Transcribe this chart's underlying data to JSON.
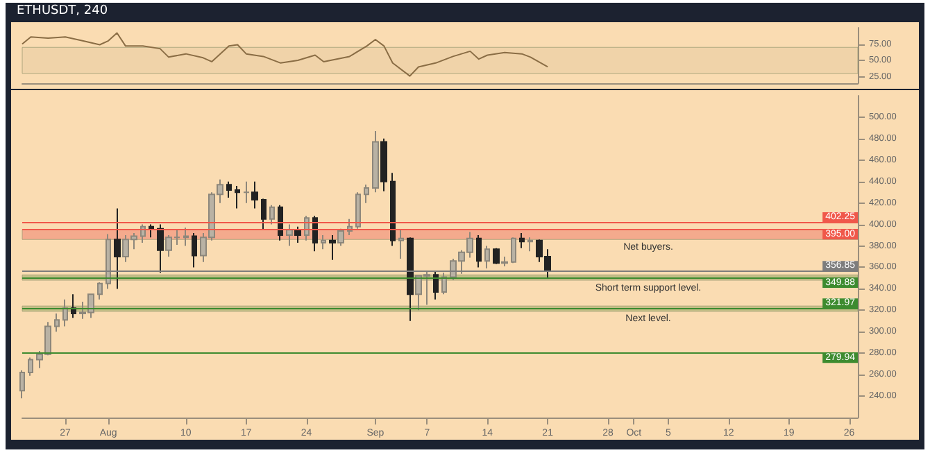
{
  "chart_data": [
    {
      "type": "line",
      "title": "ETHUSDT, 240",
      "x": [
        "--07-22",
        "--07-23",
        "--07-25",
        "--07-27",
        "--07-29",
        "--07-31",
        "--08-01",
        "--08-02",
        "--08-03",
        "--08-05",
        "--08-07",
        "--08-08",
        "--08-10",
        "--08-12",
        "--08-13",
        "--08-15",
        "--08-16",
        "--08-17",
        "--08-19",
        "--08-21",
        "--08-23",
        "--08-25",
        "--08-26",
        "--08-29",
        "--08-31",
        "--09-01",
        "--09-02",
        "--09-03",
        "--09-05",
        "--09-06",
        "--09-08",
        "--09-10",
        "--09-12",
        "--09-13",
        "--09-14",
        "--09-16",
        "--09-18",
        "--09-19",
        "--09-21"
      ],
      "series": [
        {
          "color": "#8a6d45",
          "values": [
            75,
            86,
            84,
            86,
            80,
            74,
            80,
            92,
            72,
            72,
            68,
            55,
            60,
            54,
            48,
            72,
            74,
            60,
            56,
            46,
            50,
            58,
            48,
            56,
            72,
            82,
            72,
            46,
            26,
            40,
            46,
            56,
            64,
            52,
            58,
            62,
            60,
            55,
            40
          ]
        }
      ],
      "xlim": [
        "--07-22",
        "--10-27"
      ],
      "ylim": [
        15,
        100
      ],
      "yticks": [
        {
          "value": 25,
          "label": "25.00"
        },
        {
          "value": 50,
          "label": "50.00"
        },
        {
          "value": 75,
          "label": "75.00"
        }
      ],
      "bands": [
        {
          "axis": "y",
          "from": 30,
          "to": 70,
          "color": "#ecd0a6"
        }
      ],
      "tick_labels": "y",
      "marker": "none",
      "grid": false
    },
    {
      "type": "candlestick",
      "x": [
        "--07-22",
        "--07-23",
        "--07-24",
        "--07-25",
        "--07-26",
        "--07-27",
        "--07-28",
        "--07-29",
        "--07-30",
        "--07-31",
        "--08-01",
        "--08-02",
        "--08-03",
        "--08-04",
        "--08-05",
        "--08-06",
        "--08-07",
        "--08-08",
        "--08-09",
        "--08-10",
        "--08-11",
        "--08-12",
        "--08-13",
        "--08-14",
        "--08-15",
        "--08-16",
        "--08-17",
        "--08-18",
        "--08-19",
        "--08-20",
        "--08-21",
        "--08-22",
        "--08-23",
        "--08-24",
        "--08-25",
        "--08-26",
        "--08-27",
        "--08-28",
        "--08-29",
        "--08-30",
        "--08-31",
        "--09-01",
        "--09-02",
        "--09-03",
        "--09-04",
        "--09-05",
        "--09-06",
        "--09-07",
        "--09-08",
        "--09-09",
        "--09-10",
        "--09-11",
        "--09-12",
        "--09-13",
        "--09-14",
        "--09-15",
        "--09-16",
        "--09-17",
        "--09-18",
        "--09-19",
        "--09-20",
        "--09-21"
      ],
      "ohlc": [
        [
          245,
          264,
          238,
          262
        ],
        [
          262,
          276,
          259,
          274
        ],
        [
          274,
          282,
          266,
          279
        ],
        [
          279,
          309,
          278,
          305
        ],
        [
          305,
          317,
          300,
          311
        ],
        [
          311,
          330,
          305,
          322
        ],
        [
          322,
          335,
          313,
          317
        ],
        [
          317,
          328,
          312,
          318
        ],
        [
          318,
          335,
          313,
          335
        ],
        [
          335,
          346,
          330,
          345
        ],
        [
          345,
          391,
          340,
          386
        ],
        [
          386,
          415,
          340,
          370
        ],
        [
          370,
          390,
          365,
          386
        ],
        [
          386,
          392,
          377,
          389
        ],
        [
          389,
          400,
          383,
          398
        ],
        [
          398,
          400,
          388,
          396
        ],
        [
          396,
          400,
          355,
          376
        ],
        [
          376,
          390,
          370,
          388
        ],
        [
          388,
          395,
          381,
          388
        ],
        [
          388,
          397,
          380,
          389
        ],
        [
          389,
          392,
          360,
          371
        ],
        [
          371,
          392,
          365,
          388
        ],
        [
          388,
          430,
          385,
          428
        ],
        [
          428,
          442,
          420,
          437
        ],
        [
          437,
          440,
          425,
          432
        ],
        [
          432,
          436,
          415,
          430
        ],
        [
          430,
          440,
          420,
          430
        ],
        [
          430,
          440,
          415,
          423
        ],
        [
          423,
          424,
          395,
          405
        ],
        [
          405,
          418,
          400,
          416
        ],
        [
          416,
          418,
          385,
          390
        ],
        [
          390,
          400,
          380,
          395
        ],
        [
          395,
          398,
          383,
          390
        ],
        [
          390,
          408,
          385,
          406
        ],
        [
          406,
          408,
          375,
          383
        ],
        [
          383,
          390,
          377,
          385
        ],
        [
          385,
          390,
          367,
          383
        ],
        [
          383,
          396,
          380,
          394
        ],
        [
          394,
          405,
          390,
          398
        ],
        [
          398,
          430,
          396,
          428
        ],
        [
          428,
          437,
          420,
          434
        ],
        [
          434,
          487,
          430,
          477
        ],
        [
          477,
          480,
          431,
          440
        ],
        [
          440,
          448,
          380,
          385
        ],
        [
          385,
          395,
          368,
          387
        ],
        [
          387,
          388,
          310,
          335
        ],
        [
          335,
          352,
          320,
          352
        ],
        [
          352,
          356,
          325,
          353
        ],
        [
          353,
          357,
          330,
          337
        ],
        [
          337,
          355,
          335,
          351
        ],
        [
          351,
          368,
          348,
          366
        ],
        [
          366,
          376,
          354,
          374
        ],
        [
          374,
          393,
          369,
          387
        ],
        [
          387,
          390,
          360,
          366
        ],
        [
          366,
          380,
          359,
          377
        ],
        [
          377,
          378,
          363,
          364
        ],
        [
          364,
          370,
          361,
          365
        ],
        [
          365,
          388,
          364,
          387
        ],
        [
          387,
          392,
          378,
          384
        ],
        [
          384,
          388,
          375,
          385
        ],
        [
          385,
          386,
          365,
          370
        ],
        [
          370,
          377,
          350,
          357
        ]
      ],
      "xlim": [
        "--07-22",
        "--10-27"
      ],
      "ylim": [
        220,
        520
      ],
      "xticks": [
        {
          "value": "--07-27",
          "label": "27"
        },
        {
          "value": "--08-01",
          "label": "Aug"
        },
        {
          "value": "--08-10",
          "label": "10"
        },
        {
          "value": "--08-17",
          "label": "17"
        },
        {
          "value": "--08-24",
          "label": "24"
        },
        {
          "value": "--09-01",
          "label": "Sep"
        },
        {
          "value": "--09-07",
          "label": "7"
        },
        {
          "value": "--09-14",
          "label": "14"
        },
        {
          "value": "--09-21",
          "label": "21"
        },
        {
          "value": "--09-28",
          "label": "28"
        },
        {
          "value": "--10-01",
          "label": "Oct"
        },
        {
          "value": "--10-05",
          "label": "5"
        },
        {
          "value": "--10-12",
          "label": "12"
        },
        {
          "value": "--10-19",
          "label": "19"
        },
        {
          "value": "--10-26",
          "label": "26"
        }
      ],
      "yticks": [
        {
          "value": 240,
          "label": "240.00"
        },
        {
          "value": 260,
          "label": "260.00"
        },
        {
          "value": 280,
          "label": "280.00"
        },
        {
          "value": 300,
          "label": "300.00"
        },
        {
          "value": 320,
          "label": "320.00"
        },
        {
          "value": 340,
          "label": "340.00"
        },
        {
          "value": 360,
          "label": "360.00"
        },
        {
          "value": 380,
          "label": "380.00"
        },
        {
          "value": 400,
          "label": "400.00"
        },
        {
          "value": 420,
          "label": "420.00"
        },
        {
          "value": 440,
          "label": "440.00"
        },
        {
          "value": 460,
          "label": "460.00"
        },
        {
          "value": 480,
          "label": "480.00"
        },
        {
          "value": 500,
          "label": "500.00"
        }
      ],
      "ref_lines": [
        {
          "axis": "y",
          "value": 402.25,
          "label": "402.25",
          "color": "#f0584a"
        },
        {
          "axis": "y",
          "value": 395.0,
          "label": "395.00",
          "color": "#f0584a"
        },
        {
          "axis": "y",
          "value": 356.85,
          "label": "356.85",
          "color": "#7d7d7d"
        },
        {
          "axis": "y",
          "value": 349.88,
          "label": "349.88",
          "color": "#3d8b2f"
        },
        {
          "axis": "y",
          "value": 321.97,
          "label": "321.97",
          "color": "#3d8b2f"
        },
        {
          "axis": "y",
          "value": 279.94,
          "label": "279.94",
          "color": "#3d8b2f"
        }
      ],
      "bands": [
        {
          "axis": "y",
          "from": 386,
          "to": 395,
          "label": "Net buyers.",
          "color": "#f29a80"
        },
        {
          "axis": "y",
          "from": 348,
          "to": 353,
          "label": "Short term support level.",
          "color": "#b3b57a"
        },
        {
          "axis": "y",
          "from": 319,
          "to": 324,
          "label": "Next level.",
          "color": "#b3b57a"
        }
      ],
      "grid": false
    }
  ]
}
